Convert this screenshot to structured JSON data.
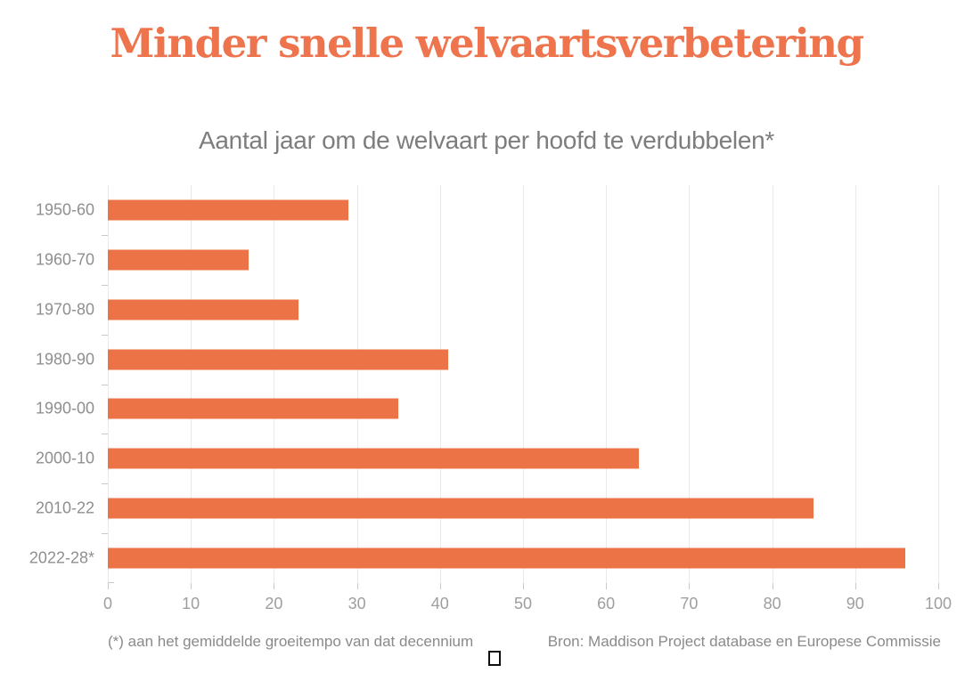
{
  "chart_data": {
    "type": "bar",
    "orientation": "horizontal",
    "title": "Minder snelle welvaartsverbetering",
    "subtitle": "Aantal jaar om de welvaart per hoofd te verdubbelen*",
    "categories": [
      "1950-60",
      "1960-70",
      "1970-80",
      "1980-90",
      "1990-00",
      "2000-10",
      "2010-22",
      "2022-28*"
    ],
    "values": [
      29,
      17,
      23,
      41,
      35,
      64,
      85,
      96
    ],
    "xlabel": "",
    "ylabel": "",
    "xlim": [
      0,
      100
    ],
    "x_ticks": [
      0,
      10,
      20,
      30,
      40,
      50,
      60,
      70,
      80,
      90,
      100
    ],
    "grid": "vertical",
    "legend": "none",
    "bar_color": "#EC7346",
    "title_color": "#EE744D"
  },
  "footer": {
    "footnote": "(*) aan het gemiddelde groeitempo van dat decennium",
    "source": "Bron: Maddison Project database en Europese Commissie",
    "missing_glyph": "□"
  }
}
